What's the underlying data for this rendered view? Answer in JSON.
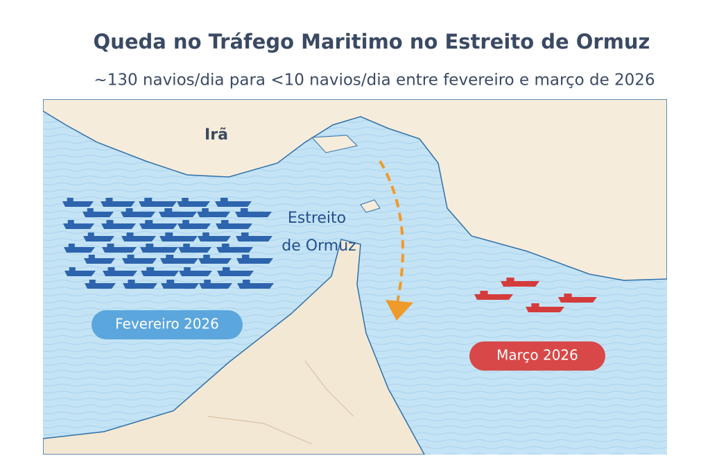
{
  "header": {
    "title": "Queda no Tráfego Maritimo no Estreito de Ormuz",
    "subtitle": "~130 navios/dia para <10 navios/dia entre fevereiro e março de 2026"
  },
  "map": {
    "country_label": "Irã",
    "strait_label": [
      "Estreito",
      "de Ormuz"
    ],
    "before_badge": "Fevereiro 2026",
    "after_badge": "Março 2026"
  }
}
